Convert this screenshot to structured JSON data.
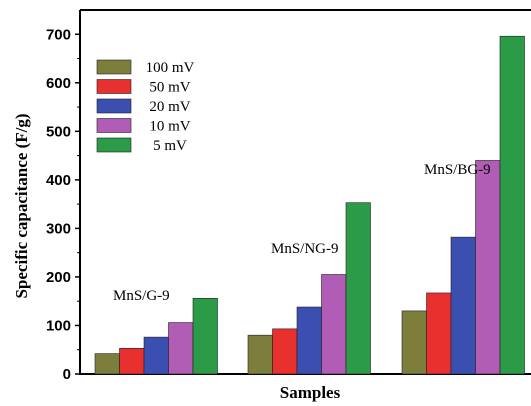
{
  "chart_data": {
    "type": "bar",
    "title": "",
    "xlabel": "Samples",
    "ylabel": "Specific capacitance (F/g)",
    "ylim": [
      0,
      750
    ],
    "yticks": [
      0,
      100,
      200,
      300,
      400,
      500,
      600,
      700
    ],
    "grid": false,
    "legend_position": "top-left",
    "categories": [
      "MnS/G-9",
      "MnS/NG-9",
      "MnS/BG-9"
    ],
    "series": [
      {
        "name": "100 mV",
        "color": "#7d7d3c",
        "values": [
          42,
          80,
          130
        ]
      },
      {
        "name": "50 mV",
        "color": "#e8302f",
        "values": [
          53,
          93,
          167
        ]
      },
      {
        "name": "20 mV",
        "color": "#3a4fb0",
        "values": [
          76,
          138,
          282
        ]
      },
      {
        "name": "10 mV",
        "color": "#b15cb5",
        "values": [
          106,
          205,
          440
        ]
      },
      {
        "name": "5 mV",
        "color": "#2b9b48",
        "values": [
          156,
          353,
          696
        ]
      }
    ]
  }
}
